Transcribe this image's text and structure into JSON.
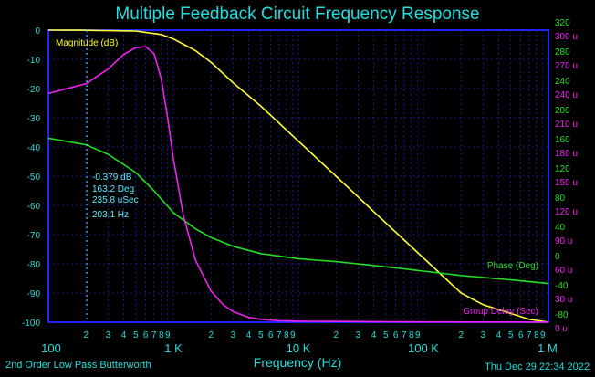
{
  "chart_data": {
    "type": "line",
    "title": "Multiple Feedback Circuit Frequency Response",
    "xlabel": "Frequency (Hz)",
    "footer_left": "2nd Order Low Pass Butterworth",
    "footer_right": "Thu Dec 29 22:34 2022",
    "x_scale": "log",
    "xlim": [
      100,
      1000000
    ],
    "x_decade_labels": [
      "100",
      "1 K",
      "10 K",
      "100 K",
      "1 M"
    ],
    "x_minor_labels": [
      "2",
      "3",
      "4",
      "5",
      "6",
      "7",
      "8",
      "9"
    ],
    "left_axis": {
      "ylim": [
        -100,
        0
      ],
      "ticks": [
        "0",
        "-10",
        "-20",
        "-30",
        "-40",
        "-50",
        "-60",
        "-70",
        "-80",
        "-90",
        "-100"
      ]
    },
    "right_axis_phase": {
      "ylim": [
        -80,
        320
      ],
      "ticks": [
        "320",
        "280",
        "240",
        "200",
        "160",
        "120",
        "80",
        "40",
        "0",
        "-40",
        "-80"
      ]
    },
    "right_axis_delay": {
      "ylim": [
        0,
        300
      ],
      "ticks": [
        "300 u",
        "270 u",
        "240 u",
        "210 u",
        "180 u",
        "150 u",
        "120 u",
        "90 u",
        "60 u",
        "30 u",
        "0 u"
      ]
    },
    "grid": true,
    "series": [
      {
        "name": "Magnitude (dB)",
        "axis": "left",
        "color": "#ffff33",
        "x": [
          100,
          200,
          500,
          800,
          1000,
          1500,
          2000,
          3000,
          5000,
          10000,
          20000,
          50000,
          100000,
          200000,
          300000,
          500000,
          700000,
          1000000
        ],
        "y": [
          0,
          -0.05,
          -0.3,
          -1.5,
          -3,
          -7,
          -11,
          -18,
          -26,
          -38,
          -50,
          -66,
          -78,
          -90,
          -94,
          -97,
          -99,
          -100
        ]
      },
      {
        "name": "Phase (Deg)",
        "axis": "right_phase",
        "color": "#22dd22",
        "x": [
          100,
          200,
          300,
          500,
          700,
          1000,
          1500,
          2000,
          3000,
          5000,
          10000,
          20000,
          50000,
          100000,
          200000,
          500000,
          1000000
        ],
        "y": [
          172,
          163,
          150,
          125,
          100,
          70,
          48,
          36,
          24,
          14,
          7,
          3,
          -4,
          -10,
          -16,
          -22,
          -27
        ]
      },
      {
        "name": "Group Delay (Sec)",
        "axis": "right_delay",
        "color": "#ee22ee",
        "x": [
          100,
          200,
          300,
          400,
          500,
          600,
          700,
          800,
          900,
          1000,
          1200,
          1500,
          2000,
          2500,
          3000,
          4000,
          5000,
          7000,
          10000,
          100000,
          1000000
        ],
        "y": [
          235,
          245,
          260,
          275,
          282,
          283,
          276,
          250,
          210,
          168,
          110,
          64,
          32,
          18,
          11,
          5,
          3,
          1.5,
          1,
          0.3,
          0.1
        ]
      }
    ],
    "cursor": {
      "frequency": 203.1,
      "readout": [
        "-0.379 dB",
        "163.2 Deg",
        "235.8 uSec",
        "203.1 Hz"
      ]
    }
  }
}
